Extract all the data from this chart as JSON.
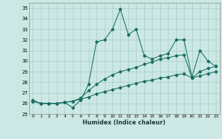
{
  "xlabel": "Humidex (Indice chaleur)",
  "background_color": "#cce8e4",
  "grid_color": "#aacfcb",
  "line_color": "#1a6e64",
  "xlim": [
    -0.5,
    23.5
  ],
  "ylim": [
    25,
    35.5
  ],
  "xticks": [
    0,
    1,
    2,
    3,
    4,
    5,
    6,
    7,
    8,
    9,
    10,
    11,
    12,
    13,
    14,
    15,
    16,
    17,
    18,
    19,
    20,
    21,
    22,
    23
  ],
  "yticks": [
    25,
    26,
    27,
    28,
    29,
    30,
    31,
    32,
    33,
    34,
    35
  ],
  "line1_y": [
    26.3,
    26.0,
    26.0,
    26.0,
    26.1,
    25.6,
    26.3,
    27.8,
    31.8,
    32.0,
    33.0,
    34.9,
    32.5,
    33.0,
    30.5,
    30.2,
    30.5,
    30.7,
    32.0,
    32.0,
    28.5,
    31.0,
    30.0,
    29.5
  ],
  "line2_y": [
    26.2,
    26.0,
    26.0,
    26.0,
    26.1,
    26.2,
    26.5,
    27.2,
    27.8,
    28.3,
    28.7,
    29.0,
    29.2,
    29.4,
    29.7,
    29.9,
    30.2,
    30.3,
    30.5,
    30.6,
    28.4,
    29.0,
    29.3,
    29.5
  ],
  "line3_y": [
    26.2,
    26.0,
    26.0,
    26.0,
    26.1,
    26.2,
    26.4,
    26.6,
    26.9,
    27.1,
    27.3,
    27.5,
    27.7,
    27.9,
    28.1,
    28.2,
    28.4,
    28.5,
    28.7,
    28.8,
    28.4,
    28.6,
    28.8,
    29.0
  ]
}
